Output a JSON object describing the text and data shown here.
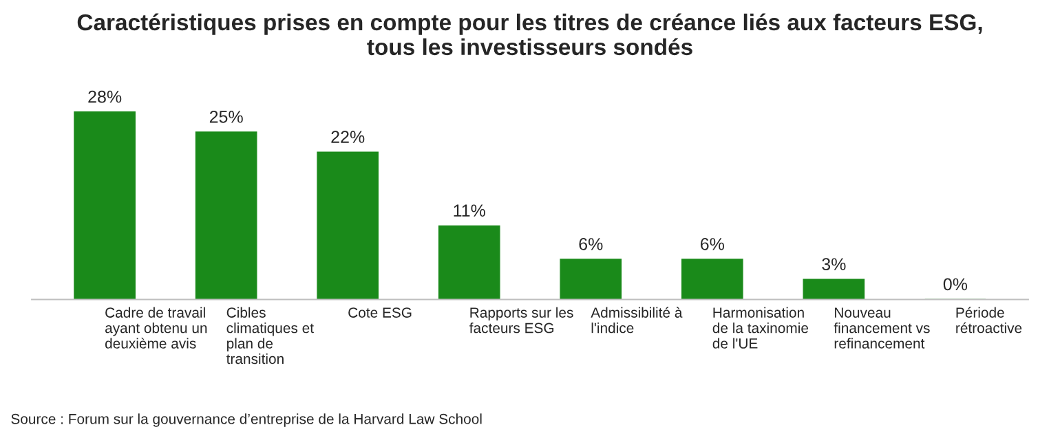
{
  "chart_data": {
    "type": "bar",
    "title": "Caractéristiques prises en compte pour les titres de créance liés aux facteurs ESG,\ntous les investisseurs sondés",
    "categories": [
      "Cadre de travail\nayant obtenu un\ndeuxième avis",
      "Cibles\nclimatiques et\nplan de\ntransition",
      "Cote ESG",
      "Rapports sur les\nfacteurs ESG",
      "Admissibilité à\nl'indice",
      "Harmonisation\nde la taxinomie\nde l'UE",
      "Nouveau\nfinancement vs\nrefinancement",
      "Période\nrétroactive"
    ],
    "values": [
      28,
      25,
      22,
      11,
      6,
      6,
      3,
      0
    ],
    "value_labels": [
      "28%",
      "25%",
      "22%",
      "11%",
      "6%",
      "6%",
      "3%",
      "0%"
    ],
    "color": "#1a8a1a",
    "grid": false,
    "annotations": [
      "Source : Forum sur la gouvernance d’entreprise de la Harvard Law School"
    ]
  }
}
